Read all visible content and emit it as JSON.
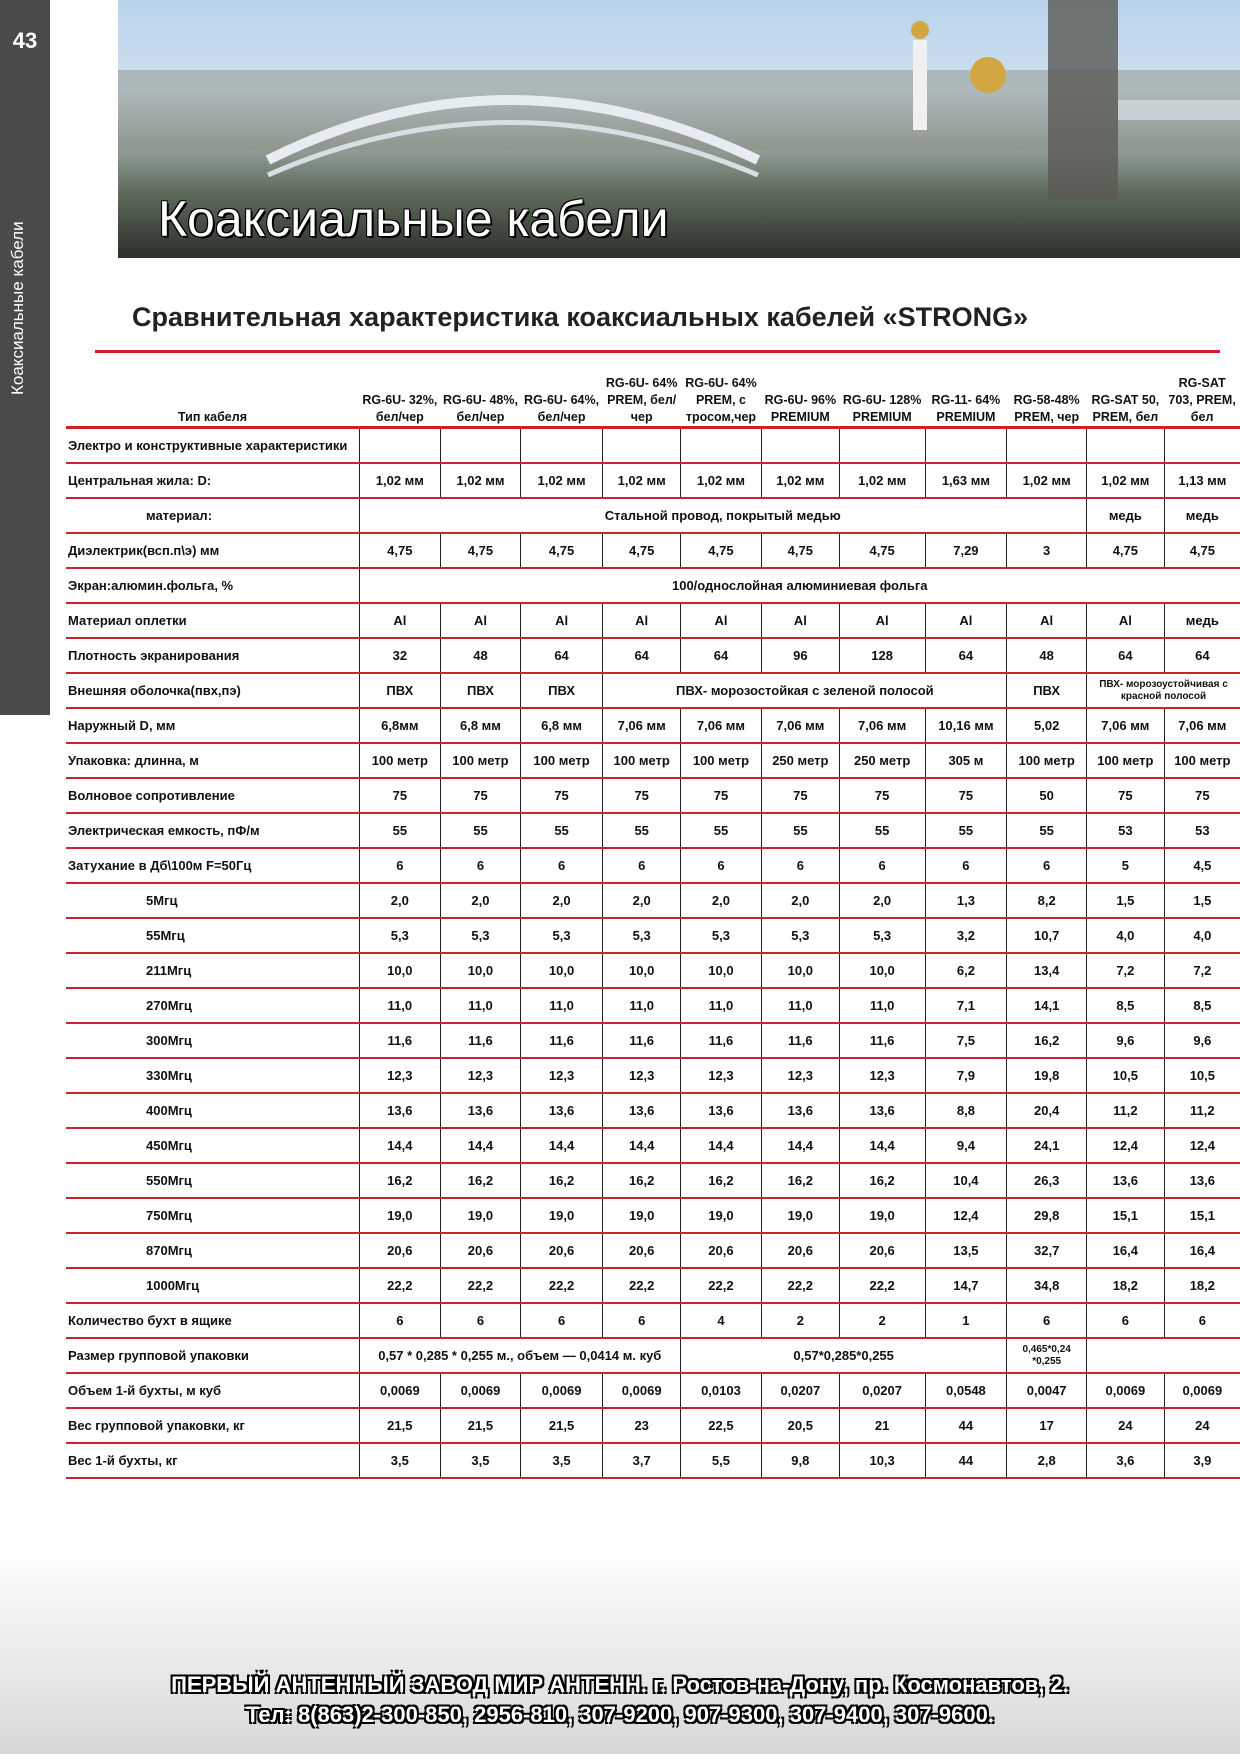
{
  "page_number": "43",
  "side_label": "Коаксиальные кабели",
  "banner_title": "Коаксиальные кабели",
  "subtitle": "Сравнительная характеристика коаксиальных  кабелей «STRONG»",
  "table": {
    "header_label": "Тип кабеля",
    "columns": [
      "RG-6U- 32%, бел/чер",
      "RG-6U- 48%, бел/чер",
      "RG-6U- 64%, бел/чер",
      "RG-6U- 64% PREM, бел/чер",
      "RG-6U- 64% PREM, с тросом,чер",
      "RG-6U- 96% PREMIUM",
      "RG-6U- 128% PREMIUM",
      "RG-11- 64% PREMIUM",
      "RG-58-48% PREM, чер",
      "RG-SAT 50, PREM, бел",
      "RG-SAT 703, PREM, бел"
    ],
    "rows": [
      {
        "label": "Электро и конструктивные характеристики",
        "cells": [
          {
            "t": ""
          },
          {
            "t": ""
          },
          {
            "t": ""
          },
          {
            "t": ""
          },
          {
            "t": ""
          },
          {
            "t": ""
          },
          {
            "t": ""
          },
          {
            "t": ""
          },
          {
            "t": ""
          },
          {
            "t": ""
          },
          {
            "t": ""
          }
        ]
      },
      {
        "label": "Центральная жила:   D:",
        "cells": [
          {
            "t": "1,02 мм"
          },
          {
            "t": "1,02 мм"
          },
          {
            "t": "1,02 мм"
          },
          {
            "t": "1,02 мм"
          },
          {
            "t": "1,02 мм"
          },
          {
            "t": "1,02 мм"
          },
          {
            "t": "1,02 мм"
          },
          {
            "t": "1,63  мм"
          },
          {
            "t": "1,02 мм"
          },
          {
            "t": "1,02 мм"
          },
          {
            "t": "1,13 мм"
          }
        ]
      },
      {
        "label": "материал:",
        "sub": true,
        "cells": [
          {
            "t": "Стальной провод, покрытый медью",
            "span": 9
          },
          {
            "t": "медь"
          },
          {
            "t": "медь"
          }
        ]
      },
      {
        "label": "Диэлектрик(всп.п\\э) мм",
        "cells": [
          {
            "t": "4,75"
          },
          {
            "t": "4,75"
          },
          {
            "t": "4,75"
          },
          {
            "t": "4,75"
          },
          {
            "t": "4,75"
          },
          {
            "t": "4,75"
          },
          {
            "t": "4,75"
          },
          {
            "t": "7,29"
          },
          {
            "t": "3"
          },
          {
            "t": "4,75"
          },
          {
            "t": "4,75"
          }
        ]
      },
      {
        "label": "Экран:алюмин.фольга, %",
        "cells": [
          {
            "t": "100/однослойная алюминиевая фольга",
            "span": 11
          }
        ]
      },
      {
        "label": "Материал оплетки",
        "cells": [
          {
            "t": "Al"
          },
          {
            "t": "Al"
          },
          {
            "t": "Al"
          },
          {
            "t": "Al"
          },
          {
            "t": "Al"
          },
          {
            "t": "Al"
          },
          {
            "t": "Al"
          },
          {
            "t": "Al"
          },
          {
            "t": "Al"
          },
          {
            "t": "Al"
          },
          {
            "t": "медь"
          }
        ]
      },
      {
        "label": "Плотность экранирования",
        "cells": [
          {
            "t": "32"
          },
          {
            "t": "48"
          },
          {
            "t": "64"
          },
          {
            "t": "64"
          },
          {
            "t": "64"
          },
          {
            "t": "96"
          },
          {
            "t": "128"
          },
          {
            "t": "64"
          },
          {
            "t": "48"
          },
          {
            "t": "64"
          },
          {
            "t": "64"
          }
        ]
      },
      {
        "label": "Внешняя оболочка(пвх,пэ)",
        "cells": [
          {
            "t": "ПВХ"
          },
          {
            "t": "ПВХ"
          },
          {
            "t": "ПВХ"
          },
          {
            "t": "ПВХ- морозостойкая с зеленой полосой",
            "span": 5
          },
          {
            "t": "ПВХ"
          },
          {
            "t": "ПВХ- морозоустойчивая с красной полосой",
            "span": 2,
            "small": true
          }
        ]
      },
      {
        "label": "Наружный D, мм",
        "cells": [
          {
            "t": "6,8мм"
          },
          {
            "t": "6,8 мм"
          },
          {
            "t": "6,8 мм"
          },
          {
            "t": "7,06 мм"
          },
          {
            "t": "7,06 мм"
          },
          {
            "t": "7,06 мм"
          },
          {
            "t": "7,06 мм"
          },
          {
            "t": "10,16 мм"
          },
          {
            "t": "5,02"
          },
          {
            "t": "7,06 мм"
          },
          {
            "t": "7,06 мм"
          }
        ]
      },
      {
        "label": "Упаковка:  длинна, м",
        "cells": [
          {
            "t": "100 метр"
          },
          {
            "t": "100 метр"
          },
          {
            "t": "100 метр"
          },
          {
            "t": "100 метр"
          },
          {
            "t": "100 метр"
          },
          {
            "t": "250 метр"
          },
          {
            "t": "250 метр"
          },
          {
            "t": "305 м"
          },
          {
            "t": "100 метр"
          },
          {
            "t": "100 метр"
          },
          {
            "t": "100 метр"
          }
        ]
      },
      {
        "label": "Волновое сопротивление",
        "cells": [
          {
            "t": "75"
          },
          {
            "t": "75"
          },
          {
            "t": "75"
          },
          {
            "t": "75"
          },
          {
            "t": "75"
          },
          {
            "t": "75"
          },
          {
            "t": "75"
          },
          {
            "t": "75"
          },
          {
            "t": "50"
          },
          {
            "t": "75"
          },
          {
            "t": "75"
          }
        ]
      },
      {
        "label": "Электрическая емкость, пФ/м",
        "cells": [
          {
            "t": "55"
          },
          {
            "t": "55"
          },
          {
            "t": "55"
          },
          {
            "t": "55"
          },
          {
            "t": "55"
          },
          {
            "t": "55"
          },
          {
            "t": "55"
          },
          {
            "t": "55"
          },
          {
            "t": "55"
          },
          {
            "t": "53"
          },
          {
            "t": "53"
          }
        ]
      },
      {
        "label": "Затухание в Дб\\100м F=50Гц",
        "cells": [
          {
            "t": "6"
          },
          {
            "t": "6"
          },
          {
            "t": "6"
          },
          {
            "t": "6"
          },
          {
            "t": "6"
          },
          {
            "t": "6"
          },
          {
            "t": "6"
          },
          {
            "t": "6"
          },
          {
            "t": "6"
          },
          {
            "t": "5"
          },
          {
            "t": "4,5"
          }
        ]
      },
      {
        "label": "5Мгц",
        "sub": true,
        "cells": [
          {
            "t": "2,0"
          },
          {
            "t": "2,0"
          },
          {
            "t": "2,0"
          },
          {
            "t": "2,0"
          },
          {
            "t": "2,0"
          },
          {
            "t": "2,0"
          },
          {
            "t": "2,0"
          },
          {
            "t": "1,3"
          },
          {
            "t": "8,2"
          },
          {
            "t": "1,5"
          },
          {
            "t": "1,5"
          }
        ]
      },
      {
        "label": "55Мгц",
        "sub": true,
        "cells": [
          {
            "t": "5,3"
          },
          {
            "t": "5,3"
          },
          {
            "t": "5,3"
          },
          {
            "t": "5,3"
          },
          {
            "t": "5,3"
          },
          {
            "t": "5,3"
          },
          {
            "t": "5,3"
          },
          {
            "t": "3,2"
          },
          {
            "t": "10,7"
          },
          {
            "t": "4,0"
          },
          {
            "t": "4,0"
          }
        ]
      },
      {
        "label": "211Мгц",
        "sub": true,
        "cells": [
          {
            "t": "10,0"
          },
          {
            "t": "10,0"
          },
          {
            "t": "10,0"
          },
          {
            "t": "10,0"
          },
          {
            "t": "10,0"
          },
          {
            "t": "10,0"
          },
          {
            "t": "10,0"
          },
          {
            "t": "6,2"
          },
          {
            "t": "13,4"
          },
          {
            "t": "7,2"
          },
          {
            "t": "7,2"
          }
        ]
      },
      {
        "label": "270Мгц",
        "sub": true,
        "cells": [
          {
            "t": "11,0"
          },
          {
            "t": "11,0"
          },
          {
            "t": "11,0"
          },
          {
            "t": "11,0"
          },
          {
            "t": "11,0"
          },
          {
            "t": "11,0"
          },
          {
            "t": "11,0"
          },
          {
            "t": "7,1"
          },
          {
            "t": "14,1"
          },
          {
            "t": "8,5"
          },
          {
            "t": "8,5"
          }
        ]
      },
      {
        "label": "300Мгц",
        "sub": true,
        "cells": [
          {
            "t": "11,6"
          },
          {
            "t": "11,6"
          },
          {
            "t": "11,6"
          },
          {
            "t": "11,6"
          },
          {
            "t": "11,6"
          },
          {
            "t": "11,6"
          },
          {
            "t": "11,6"
          },
          {
            "t": "7,5"
          },
          {
            "t": "16,2"
          },
          {
            "t": "9,6"
          },
          {
            "t": "9,6"
          }
        ]
      },
      {
        "label": "330Мгц",
        "sub": true,
        "cells": [
          {
            "t": "12,3"
          },
          {
            "t": "12,3"
          },
          {
            "t": "12,3"
          },
          {
            "t": "12,3"
          },
          {
            "t": "12,3"
          },
          {
            "t": "12,3"
          },
          {
            "t": "12,3"
          },
          {
            "t": "7,9"
          },
          {
            "t": "19,8"
          },
          {
            "t": "10,5"
          },
          {
            "t": "10,5"
          }
        ]
      },
      {
        "label": "400Мгц",
        "sub": true,
        "cells": [
          {
            "t": "13,6"
          },
          {
            "t": "13,6"
          },
          {
            "t": "13,6"
          },
          {
            "t": "13,6"
          },
          {
            "t": "13,6"
          },
          {
            "t": "13,6"
          },
          {
            "t": "13,6"
          },
          {
            "t": "8,8"
          },
          {
            "t": "20,4"
          },
          {
            "t": "11,2"
          },
          {
            "t": "11,2"
          }
        ]
      },
      {
        "label": "450Мгц",
        "sub": true,
        "cells": [
          {
            "t": "14,4"
          },
          {
            "t": "14,4"
          },
          {
            "t": "14,4"
          },
          {
            "t": "14,4"
          },
          {
            "t": "14,4"
          },
          {
            "t": "14,4"
          },
          {
            "t": "14,4"
          },
          {
            "t": "9,4"
          },
          {
            "t": "24,1"
          },
          {
            "t": "12,4"
          },
          {
            "t": "12,4"
          }
        ]
      },
      {
        "label": "550Мгц",
        "sub": true,
        "cells": [
          {
            "t": "16,2"
          },
          {
            "t": "16,2"
          },
          {
            "t": "16,2"
          },
          {
            "t": "16,2"
          },
          {
            "t": "16,2"
          },
          {
            "t": "16,2"
          },
          {
            "t": "16,2"
          },
          {
            "t": "10,4"
          },
          {
            "t": "26,3"
          },
          {
            "t": "13,6"
          },
          {
            "t": "13,6"
          }
        ]
      },
      {
        "label": "750Мгц",
        "sub": true,
        "cells": [
          {
            "t": "19,0"
          },
          {
            "t": "19,0"
          },
          {
            "t": "19,0"
          },
          {
            "t": "19,0"
          },
          {
            "t": "19,0"
          },
          {
            "t": "19,0"
          },
          {
            "t": "19,0"
          },
          {
            "t": "12,4"
          },
          {
            "t": "29,8"
          },
          {
            "t": "15,1"
          },
          {
            "t": "15,1"
          }
        ]
      },
      {
        "label": "870Мгц",
        "sub": true,
        "cells": [
          {
            "t": "20,6"
          },
          {
            "t": "20,6"
          },
          {
            "t": "20,6"
          },
          {
            "t": "20,6"
          },
          {
            "t": "20,6"
          },
          {
            "t": "20,6"
          },
          {
            "t": "20,6"
          },
          {
            "t": "13,5"
          },
          {
            "t": "32,7"
          },
          {
            "t": "16,4"
          },
          {
            "t": "16,4"
          }
        ]
      },
      {
        "label": "1000Мгц",
        "sub": true,
        "cells": [
          {
            "t": "22,2"
          },
          {
            "t": "22,2"
          },
          {
            "t": "22,2"
          },
          {
            "t": "22,2"
          },
          {
            "t": "22,2"
          },
          {
            "t": "22,2"
          },
          {
            "t": "22,2"
          },
          {
            "t": "14,7"
          },
          {
            "t": "34,8"
          },
          {
            "t": "18,2"
          },
          {
            "t": "18,2"
          }
        ]
      },
      {
        "label": "Количество бухт в ящике",
        "cells": [
          {
            "t": "6"
          },
          {
            "t": "6"
          },
          {
            "t": "6"
          },
          {
            "t": "6"
          },
          {
            "t": "4"
          },
          {
            "t": "2"
          },
          {
            "t": "2"
          },
          {
            "t": "1"
          },
          {
            "t": "6"
          },
          {
            "t": "6"
          },
          {
            "t": "6"
          }
        ]
      },
      {
        "label": "Размер групповой упаковки",
        "cells": [
          {
            "t": "0,57 * 0,285 * 0,255 м., объем — 0,0414 м. куб",
            "span": 4
          },
          {
            "t": "0,57*0,285*0,255",
            "span": 4
          },
          {
            "t": "0,465*0,24 *0,255",
            "small": true
          },
          {
            "t": "",
            "span": 2
          }
        ]
      },
      {
        "label": "Объем 1-й бухты, м куб",
        "cells": [
          {
            "t": "0,0069"
          },
          {
            "t": "0,0069"
          },
          {
            "t": "0,0069"
          },
          {
            "t": "0,0069"
          },
          {
            "t": "0,0103"
          },
          {
            "t": "0,0207"
          },
          {
            "t": "0,0207"
          },
          {
            "t": "0,0548"
          },
          {
            "t": "0,0047"
          },
          {
            "t": "0,0069"
          },
          {
            "t": "0,0069"
          }
        ]
      },
      {
        "label": "Вес групповой упаковки, кг",
        "cells": [
          {
            "t": "21,5"
          },
          {
            "t": "21,5"
          },
          {
            "t": "21,5"
          },
          {
            "t": "23"
          },
          {
            "t": "22,5"
          },
          {
            "t": "20,5"
          },
          {
            "t": "21"
          },
          {
            "t": "44"
          },
          {
            "t": "17"
          },
          {
            "t": "24"
          },
          {
            "t": "24"
          }
        ]
      },
      {
        "label": "Вес 1-й бухты, кг",
        "cells": [
          {
            "t": "3,5"
          },
          {
            "t": "3,5"
          },
          {
            "t": "3,5"
          },
          {
            "t": "3,7"
          },
          {
            "t": "5,5"
          },
          {
            "t": "9,8"
          },
          {
            "t": "10,3"
          },
          {
            "t": "44"
          },
          {
            "t": "2,8"
          },
          {
            "t": "3,6"
          },
          {
            "t": "3,9"
          }
        ]
      }
    ]
  },
  "footer": {
    "line1": "ПЕРВЫЙ АНТЕННЫЙ ЗАВОД МИР АНТЕНН. г. Ростов-на-Дону, пр. Космонавтов, 2.",
    "line2": "Тел: 8(863)2-300-850, 2956-810, 307-9200, 907-9300, 307-9400, 307-9600."
  },
  "colors": {
    "accent": "#d02028",
    "sidebar": "#4a4a4a"
  }
}
